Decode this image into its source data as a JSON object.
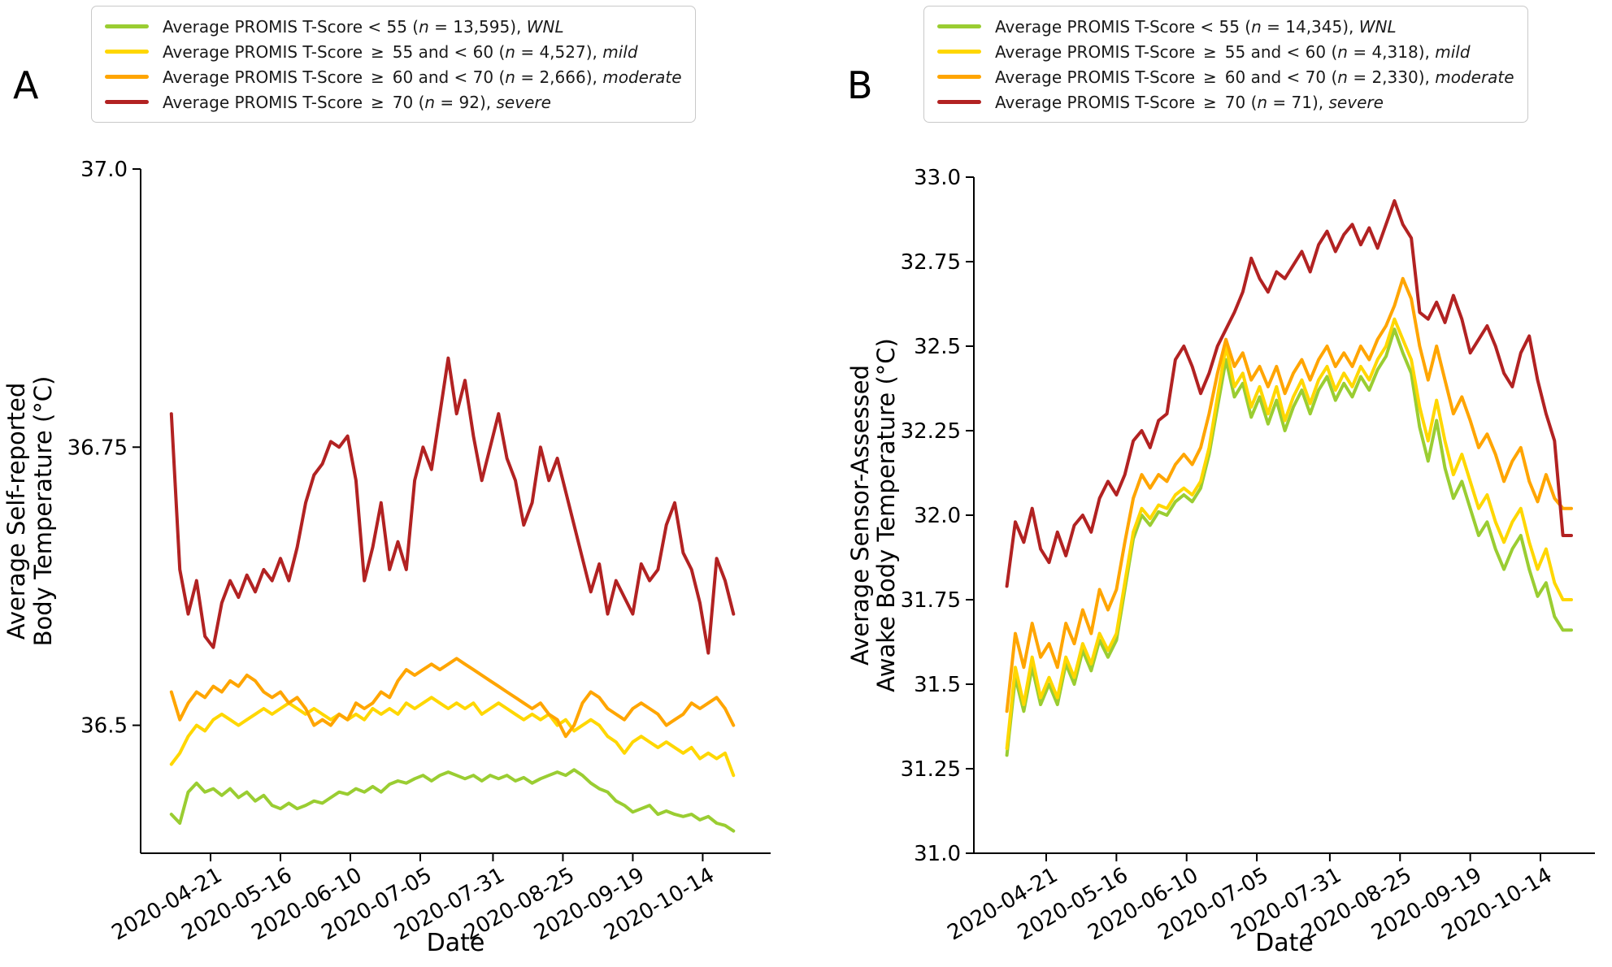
{
  "panels": [
    {
      "letter": "A"
    },
    {
      "letter": "B"
    }
  ],
  "colors": {
    "wnl": "#9ACD32",
    "mild": "#FFD700",
    "moderate": "#FFA500",
    "severe": "#B22222",
    "axis": "#000000",
    "legend_border": "#c9c9c9"
  },
  "legends": [
    {
      "items": [
        {
          "color": "#9ACD32",
          "pre": "Average PROMIS T-Score < 55 (",
          "n": "n",
          "mid": " = 13,595), ",
          "tag": "WNL"
        },
        {
          "color": "#FFD700",
          "pre": "Average PROMIS T-Score ≥ 55 and < 60 (",
          "n": "n",
          "mid": " = 4,527), ",
          "tag": "mild"
        },
        {
          "color": "#FFA500",
          "pre": "Average PROMIS T-Score ≥ 60 and < 70 (",
          "n": "n",
          "mid": " = 2,666), ",
          "tag": "moderate"
        },
        {
          "color": "#B22222",
          "pre": "Average PROMIS T-Score ≥ 70 (",
          "n": "n",
          "mid": " = 92), ",
          "tag": "severe"
        }
      ]
    },
    {
      "items": [
        {
          "color": "#9ACD32",
          "pre": "Average PROMIS T-Score < 55 (",
          "n": "n",
          "mid": " = 14,345), ",
          "tag": "WNL"
        },
        {
          "color": "#FFD700",
          "pre": "Average PROMIS T-Score ≥ 55 and < 60 (",
          "n": "n",
          "mid": " = 4,318), ",
          "tag": "mild"
        },
        {
          "color": "#FFA500",
          "pre": "Average PROMIS T-Score ≥ 60 and < 70 (",
          "n": "n",
          "mid": " = 2,330), ",
          "tag": "moderate"
        },
        {
          "color": "#B22222",
          "pre": "Average PROMIS T-Score ≥ 70 (",
          "n": "n",
          "mid": " = 71), ",
          "tag": "severe"
        }
      ]
    }
  ],
  "chart_data": [
    {
      "type": "line",
      "panel": "A",
      "xlabel": "Date",
      "ylabel_lines": [
        "Average Self-reported",
        "Body Temperature (°C)"
      ],
      "ylim": [
        36.385,
        37.0
      ],
      "grid": false,
      "legend_position": "top",
      "y_ticks": [
        {
          "v": 37.0,
          "label": "37.0"
        },
        {
          "v": 36.75,
          "label": "36.75"
        },
        {
          "v": 36.5,
          "label": "36.5"
        }
      ],
      "x_ticks": [
        {
          "day": 14,
          "label": "2020-04-21"
        },
        {
          "day": 39,
          "label": "2020-05-16"
        },
        {
          "day": 64,
          "label": "2020-06-10"
        },
        {
          "day": 89,
          "label": "2020-07-05"
        },
        {
          "day": 115,
          "label": "2020-07-31"
        },
        {
          "day": 140,
          "label": "2020-08-25"
        },
        {
          "day": 165,
          "label": "2020-09-19"
        },
        {
          "day": 190,
          "label": "2020-10-14"
        }
      ],
      "x_days": [
        0,
        3,
        6,
        9,
        12,
        15,
        18,
        21,
        24,
        27,
        30,
        33,
        36,
        39,
        42,
        45,
        48,
        51,
        54,
        57,
        60,
        63,
        66,
        69,
        72,
        75,
        78,
        81,
        84,
        87,
        90,
        93,
        96,
        99,
        102,
        105,
        108,
        111,
        114,
        117,
        120,
        123,
        126,
        129,
        132,
        135,
        138,
        141,
        144,
        147,
        150,
        153,
        156,
        159,
        162,
        165,
        168,
        171,
        174,
        177,
        180,
        183,
        186,
        189,
        192,
        195,
        198,
        201
      ],
      "series": [
        {
          "key": "wnl",
          "name": "WNL (T-Score < 55)",
          "color": "#9ACD32",
          "values": [
            36.42,
            36.412,
            36.44,
            36.448,
            36.44,
            36.443,
            36.437,
            36.443,
            36.435,
            36.44,
            36.432,
            36.437,
            36.428,
            36.425,
            36.43,
            36.425,
            36.428,
            36.432,
            36.43,
            36.435,
            36.44,
            36.438,
            36.443,
            36.44,
            36.445,
            36.44,
            36.447,
            36.45,
            36.448,
            36.452,
            36.455,
            36.45,
            36.455,
            36.458,
            36.455,
            36.452,
            36.455,
            36.45,
            36.455,
            36.452,
            36.455,
            36.45,
            36.453,
            36.448,
            36.452,
            36.455,
            36.458,
            36.455,
            36.46,
            36.455,
            36.448,
            36.443,
            36.44,
            36.432,
            36.428,
            36.422,
            36.425,
            36.428,
            36.42,
            36.423,
            36.42,
            36.418,
            36.42,
            36.415,
            36.418,
            36.412,
            36.41,
            36.405
          ]
        },
        {
          "key": "mild",
          "name": "mild (55–60)",
          "color": "#FFD700",
          "values": [
            36.465,
            36.475,
            36.49,
            36.5,
            36.495,
            36.505,
            36.51,
            36.505,
            36.5,
            36.505,
            36.51,
            36.515,
            36.51,
            36.515,
            36.52,
            36.515,
            36.51,
            36.515,
            36.51,
            36.505,
            36.51,
            36.505,
            36.51,
            36.505,
            36.515,
            36.51,
            36.515,
            36.51,
            36.52,
            36.515,
            36.52,
            36.525,
            36.52,
            36.515,
            36.52,
            36.515,
            36.52,
            36.51,
            36.515,
            36.52,
            36.515,
            36.51,
            36.505,
            36.51,
            36.505,
            36.51,
            36.5,
            36.505,
            36.495,
            36.5,
            36.505,
            36.5,
            36.49,
            36.485,
            36.475,
            36.485,
            36.49,
            36.485,
            36.48,
            36.485,
            36.48,
            36.475,
            36.48,
            36.47,
            36.475,
            36.47,
            36.475,
            36.455
          ]
        },
        {
          "key": "moderate",
          "name": "moderate (60–70)",
          "color": "#FFA500",
          "values": [
            36.53,
            36.505,
            36.52,
            36.53,
            36.525,
            36.535,
            36.53,
            36.54,
            36.535,
            36.545,
            36.54,
            36.53,
            36.525,
            36.53,
            36.52,
            36.525,
            36.515,
            36.5,
            36.505,
            36.5,
            36.51,
            36.505,
            36.52,
            36.515,
            36.52,
            36.53,
            36.525,
            36.54,
            36.55,
            36.545,
            36.55,
            36.555,
            36.55,
            36.555,
            36.56,
            36.555,
            36.55,
            36.545,
            36.54,
            36.535,
            36.53,
            36.525,
            36.52,
            36.515,
            36.52,
            36.51,
            36.505,
            36.49,
            36.5,
            36.52,
            36.53,
            36.525,
            36.515,
            36.51,
            36.505,
            36.515,
            36.52,
            36.515,
            36.51,
            36.5,
            36.505,
            36.51,
            36.52,
            36.515,
            36.52,
            36.525,
            36.515,
            36.5
          ]
        },
        {
          "key": "severe",
          "name": "severe (≥ 70)",
          "color": "#B22222",
          "values": [
            36.78,
            36.64,
            36.6,
            36.63,
            36.58,
            36.57,
            36.61,
            36.63,
            36.615,
            36.635,
            36.62,
            36.64,
            36.63,
            36.65,
            36.63,
            36.66,
            36.7,
            36.725,
            36.735,
            36.755,
            36.75,
            36.76,
            36.72,
            36.63,
            36.66,
            36.7,
            36.64,
            36.665,
            36.64,
            36.72,
            36.75,
            36.73,
            36.78,
            36.83,
            36.78,
            36.81,
            36.76,
            36.72,
            36.75,
            36.78,
            36.74,
            36.72,
            36.68,
            36.7,
            36.75,
            36.72,
            36.74,
            36.71,
            36.68,
            36.65,
            36.62,
            36.645,
            36.6,
            36.63,
            36.615,
            36.6,
            36.645,
            36.63,
            36.64,
            36.68,
            36.7,
            36.655,
            36.64,
            36.61,
            36.565,
            36.65,
            36.63,
            36.6
          ]
        }
      ]
    },
    {
      "type": "line",
      "panel": "B",
      "xlabel": "Date",
      "ylabel_lines": [
        "Average Sensor-Assessed",
        "Awake Body Temperature (°C)"
      ],
      "ylim": [
        31.0,
        33.0
      ],
      "grid": false,
      "legend_position": "top",
      "y_ticks": [
        {
          "v": 33.0,
          "label": "33.0"
        },
        {
          "v": 32.75,
          "label": "32.75"
        },
        {
          "v": 32.5,
          "label": "32.5"
        },
        {
          "v": 32.25,
          "label": "32.25"
        },
        {
          "v": 32.0,
          "label": "32.0"
        },
        {
          "v": 31.75,
          "label": "31.75"
        },
        {
          "v": 31.5,
          "label": "31.5"
        },
        {
          "v": 31.25,
          "label": "31.25"
        },
        {
          "v": 31.0,
          "label": "31.0"
        }
      ],
      "x_ticks": [
        {
          "day": 14,
          "label": "2020-04-21"
        },
        {
          "day": 39,
          "label": "2020-05-16"
        },
        {
          "day": 64,
          "label": "2020-06-10"
        },
        {
          "day": 89,
          "label": "2020-07-05"
        },
        {
          "day": 115,
          "label": "2020-07-31"
        },
        {
          "day": 140,
          "label": "2020-08-25"
        },
        {
          "day": 165,
          "label": "2020-09-19"
        },
        {
          "day": 190,
          "label": "2020-10-14"
        }
      ],
      "x_days": [
        0,
        3,
        6,
        9,
        12,
        15,
        18,
        21,
        24,
        27,
        30,
        33,
        36,
        39,
        42,
        45,
        48,
        51,
        54,
        57,
        60,
        63,
        66,
        69,
        72,
        75,
        78,
        81,
        84,
        87,
        90,
        93,
        96,
        99,
        102,
        105,
        108,
        111,
        114,
        117,
        120,
        123,
        126,
        129,
        132,
        135,
        138,
        141,
        144,
        147,
        150,
        153,
        156,
        159,
        162,
        165,
        168,
        171,
        174,
        177,
        180,
        183,
        186,
        189,
        192,
        195,
        198,
        201
      ],
      "series": [
        {
          "key": "wnl",
          "name": "WNL (T-Score < 55)",
          "color": "#9ACD32",
          "values": [
            31.29,
            31.52,
            31.42,
            31.55,
            31.44,
            31.5,
            31.44,
            31.56,
            31.5,
            31.6,
            31.54,
            31.63,
            31.58,
            31.63,
            31.78,
            31.93,
            32.0,
            31.97,
            32.01,
            32.0,
            32.04,
            32.06,
            32.04,
            32.08,
            32.18,
            32.32,
            32.46,
            32.35,
            32.39,
            32.29,
            32.35,
            32.27,
            32.34,
            32.25,
            32.32,
            32.37,
            32.3,
            32.37,
            32.41,
            32.34,
            32.39,
            32.35,
            32.41,
            32.37,
            32.43,
            32.47,
            32.55,
            32.48,
            32.42,
            32.26,
            32.16,
            32.28,
            32.14,
            32.05,
            32.1,
            32.02,
            31.94,
            31.98,
            31.9,
            31.84,
            31.9,
            31.94,
            31.84,
            31.76,
            31.8,
            31.7,
            31.66,
            31.66
          ]
        },
        {
          "key": "mild",
          "name": "mild (55–60)",
          "color": "#FFD700",
          "values": [
            31.31,
            31.55,
            31.44,
            31.58,
            31.46,
            31.52,
            31.46,
            31.58,
            31.52,
            31.62,
            31.56,
            31.65,
            31.6,
            31.65,
            31.8,
            31.95,
            32.02,
            31.99,
            32.03,
            32.02,
            32.06,
            32.08,
            32.06,
            32.1,
            32.2,
            32.35,
            32.5,
            32.38,
            32.42,
            32.32,
            32.38,
            32.3,
            32.38,
            32.28,
            32.35,
            32.4,
            32.33,
            32.4,
            32.44,
            32.37,
            32.42,
            32.38,
            32.44,
            32.4,
            32.46,
            32.5,
            32.58,
            32.52,
            32.46,
            32.32,
            32.22,
            32.34,
            32.22,
            32.12,
            32.18,
            32.1,
            32.02,
            32.06,
            31.98,
            31.92,
            31.98,
            32.02,
            31.92,
            31.84,
            31.9,
            31.8,
            31.75,
            31.75
          ]
        },
        {
          "key": "moderate",
          "name": "moderate (60–70)",
          "color": "#FFA500",
          "values": [
            31.42,
            31.65,
            31.55,
            31.68,
            31.58,
            31.62,
            31.55,
            31.68,
            31.62,
            31.72,
            31.65,
            31.78,
            31.72,
            31.78,
            31.92,
            32.05,
            32.12,
            32.08,
            32.12,
            32.1,
            32.15,
            32.18,
            32.15,
            32.2,
            32.3,
            32.42,
            32.52,
            32.44,
            32.48,
            32.4,
            32.44,
            32.38,
            32.44,
            32.36,
            32.42,
            32.46,
            32.4,
            32.46,
            32.5,
            32.44,
            32.48,
            32.44,
            32.5,
            32.46,
            32.52,
            32.56,
            32.62,
            32.7,
            32.64,
            32.5,
            32.4,
            32.5,
            32.4,
            32.3,
            32.35,
            32.28,
            32.2,
            32.24,
            32.18,
            32.1,
            32.16,
            32.2,
            32.1,
            32.04,
            32.12,
            32.05,
            32.02,
            32.02
          ]
        },
        {
          "key": "severe",
          "name": "severe (≥ 70)",
          "color": "#B22222",
          "values": [
            31.79,
            31.98,
            31.92,
            32.02,
            31.9,
            31.86,
            31.95,
            31.88,
            31.97,
            32.0,
            31.95,
            32.05,
            32.1,
            32.06,
            32.12,
            32.22,
            32.25,
            32.2,
            32.28,
            32.3,
            32.46,
            32.5,
            32.44,
            32.36,
            32.42,
            32.5,
            32.55,
            32.6,
            32.66,
            32.76,
            32.7,
            32.66,
            32.72,
            32.7,
            32.74,
            32.78,
            32.72,
            32.8,
            32.84,
            32.78,
            32.83,
            32.86,
            32.8,
            32.85,
            32.79,
            32.86,
            32.93,
            32.86,
            32.82,
            32.6,
            32.58,
            32.63,
            32.57,
            32.65,
            32.58,
            32.48,
            32.52,
            32.56,
            32.5,
            32.42,
            32.38,
            32.48,
            32.53,
            32.4,
            32.3,
            32.22,
            31.94,
            31.94
          ]
        }
      ]
    }
  ]
}
